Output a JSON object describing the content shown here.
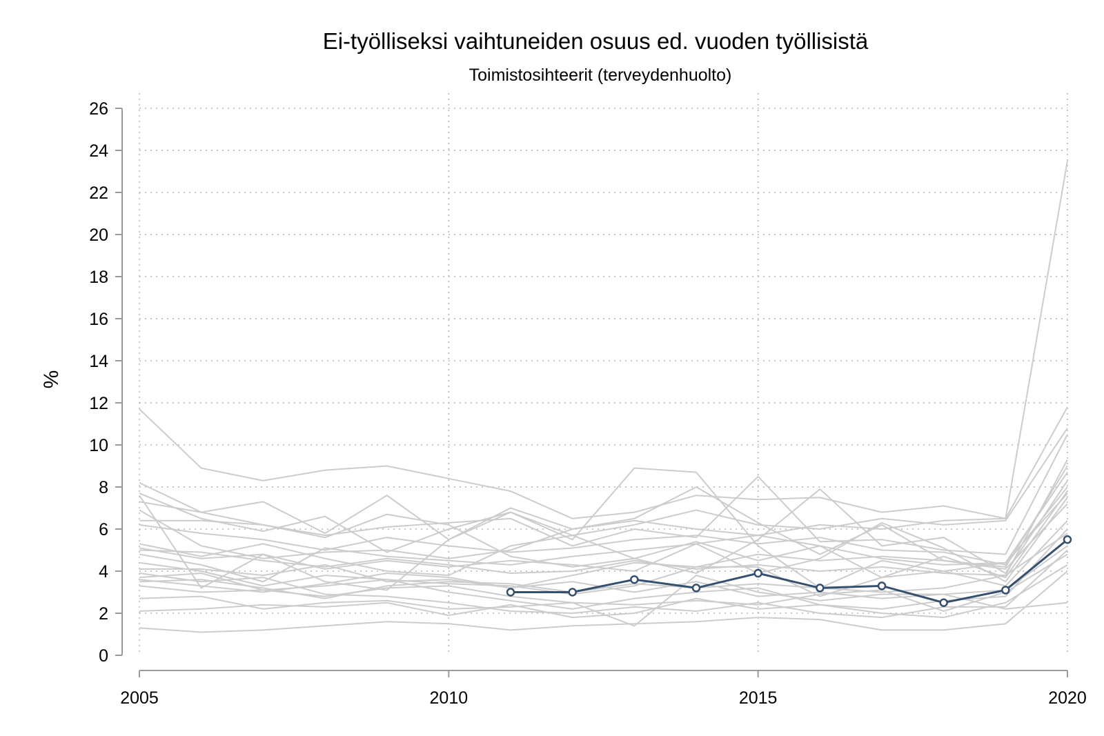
{
  "chart_data": {
    "type": "line",
    "title": "Ei-työlliseksi vaihtuneiden osuus ed. vuoden työllisistä",
    "subtitle": "Toimistosihteerit (terveydenhuolto)",
    "xlabel": "",
    "ylabel": "%",
    "xlim": [
      2005,
      2020
    ],
    "ylim": [
      0,
      26
    ],
    "x_ticks": [
      2005,
      2010,
      2015,
      2020
    ],
    "y_ticks": [
      0,
      2,
      4,
      6,
      8,
      10,
      12,
      14,
      16,
      18,
      20,
      22,
      24,
      26
    ],
    "grid": true,
    "legend": "none",
    "colors": {
      "highlight": "#34506e",
      "background": "#cccccc",
      "grid": "#b5b5b5",
      "axis": "#9a9a9a"
    },
    "x": [
      2005,
      2006,
      2007,
      2008,
      2009,
      2010,
      2011,
      2012,
      2013,
      2014,
      2015,
      2016,
      2017,
      2018,
      2019,
      2020
    ],
    "highlight_series": {
      "x": [
        2011,
        2012,
        2013,
        2014,
        2015,
        2016,
        2017,
        2018,
        2019,
        2020
      ],
      "values": [
        3.0,
        3.0,
        3.6,
        3.2,
        3.9,
        3.2,
        3.3,
        2.5,
        3.1,
        5.5
      ]
    },
    "background_series": [
      [
        11.7,
        8.9,
        8.3,
        8.8,
        9.0,
        8.4,
        7.8,
        6.5,
        6.8,
        7.6,
        7.4,
        7.5,
        6.8,
        7.1,
        6.5,
        23.5
      ],
      [
        8.2,
        6.8,
        7.3,
        5.8,
        7.6,
        5.5,
        7.0,
        6.0,
        6.4,
        6.0,
        5.7,
        6.2,
        6.0,
        6.4,
        6.5,
        11.8
      ],
      [
        7.7,
        6.5,
        5.9,
        6.6,
        4.9,
        6.0,
        6.8,
        5.7,
        6.2,
        6.9,
        6.2,
        6.0,
        6.5,
        6.2,
        6.4,
        10.8
      ],
      [
        7.3,
        6.8,
        6.2,
        5.7,
        6.1,
        6.3,
        6.5,
        5.2,
        6.0,
        5.6,
        8.5,
        5.4,
        5.5,
        5.0,
        4.8,
        10.5
      ],
      [
        6.9,
        5.2,
        4.6,
        4.9,
        5.0,
        4.6,
        5.0,
        6.0,
        6.5,
        8.0,
        6.3,
        4.8,
        6.2,
        4.5,
        4.2,
        9.0
      ],
      [
        7.6,
        3.2,
        4.8,
        3.5,
        3.1,
        5.5,
        6.8,
        5.5,
        8.9,
        8.7,
        5.2,
        3.2,
        4.5,
        4.0,
        4.4,
        8.7
      ],
      [
        6.4,
        6.4,
        6.2,
        5.6,
        6.7,
        6.2,
        4.7,
        4.2,
        4.6,
        3.9,
        5.5,
        7.9,
        5.2,
        5.6,
        3.9,
        8.3
      ],
      [
        5.3,
        4.7,
        5.3,
        4.6,
        4.0,
        3.8,
        5.2,
        5.7,
        4.6,
        5.4,
        4.5,
        5.2,
        3.7,
        4.7,
        3.7,
        7.8
      ],
      [
        4.8,
        4.3,
        3.5,
        5.1,
        4.7,
        4.5,
        4.3,
        4.7,
        5.0,
        5.3,
        5.7,
        5.2,
        4.6,
        4.3,
        4.4,
        7.7
      ],
      [
        5.1,
        4.6,
        4.8,
        4.1,
        4.5,
        4.2,
        4.5,
        4.3,
        4.0,
        5.3,
        3.9,
        4.6,
        6.3,
        5.1,
        3.5,
        7.5
      ],
      [
        4.1,
        4.1,
        3.8,
        4.3,
        3.5,
        3.6,
        3.2,
        3.8,
        4.4,
        4.2,
        4.8,
        4.5,
        4.7,
        4.5,
        4.1,
        7.2
      ],
      [
        3.7,
        3.9,
        3.1,
        3.3,
        3.6,
        3.4,
        3.3,
        2.9,
        3.3,
        4.2,
        4.2,
        2.8,
        3.7,
        4.0,
        3.3,
        6.4
      ],
      [
        3.5,
        3.6,
        3.2,
        2.7,
        3.3,
        3.5,
        3.4,
        3.0,
        3.4,
        3.2,
        3.4,
        3.2,
        3.0,
        3.2,
        3.8,
        5.8
      ],
      [
        3.3,
        3.0,
        3.1,
        2.8,
        3.2,
        3.3,
        2.8,
        2.5,
        1.4,
        3.8,
        3.0,
        2.6,
        2.9,
        2.9,
        3.1,
        5.2
      ],
      [
        2.7,
        2.8,
        2.2,
        2.5,
        2.6,
        2.2,
        2.3,
        2.5,
        2.4,
        2.6,
        2.4,
        2.9,
        3.1,
        2.1,
        3.0,
        4.8
      ],
      [
        2.1,
        2.2,
        2.4,
        2.3,
        2.5,
        1.9,
        2.4,
        1.8,
        2.0,
        2.7,
        2.2,
        2.4,
        2.0,
        1.8,
        2.5,
        4.3
      ],
      [
        1.3,
        1.1,
        1.2,
        1.4,
        1.6,
        1.5,
        1.2,
        1.4,
        1.5,
        1.6,
        1.8,
        1.7,
        1.2,
        1.2,
        1.5,
        4.0
      ],
      [
        3.6,
        3.3,
        3.0,
        3.4,
        3.9,
        3.7,
        3.2,
        3.5,
        3.0,
        3.5,
        2.8,
        3.0,
        2.7,
        2.9,
        2.2,
        2.5
      ],
      [
        5.0,
        4.9,
        4.5,
        4.2,
        4.6,
        4.3,
        3.9,
        4.0,
        4.5,
        4.1,
        4.3,
        4.0,
        4.2,
        3.9,
        3.8,
        9.3
      ],
      [
        6.2,
        5.8,
        5.5,
        5.0,
        5.6,
        5.2,
        4.9,
        5.1,
        5.5,
        5.7,
        5.3,
        5.6,
        5.0,
        4.9,
        4.3,
        8.0
      ],
      [
        4.4,
        4.0,
        3.3,
        3.8,
        3.6,
        3.0,
        2.6,
        2.2,
        2.7,
        3.0,
        3.2,
        2.4,
        2.2,
        2.6,
        2.8,
        6.0
      ],
      [
        3.9,
        3.5,
        3.7,
        2.9,
        2.8,
        2.5,
        2.1,
        2.0,
        2.3,
        2.1,
        2.5,
        2.0,
        1.8,
        2.3,
        2.3,
        5.0
      ]
    ]
  }
}
